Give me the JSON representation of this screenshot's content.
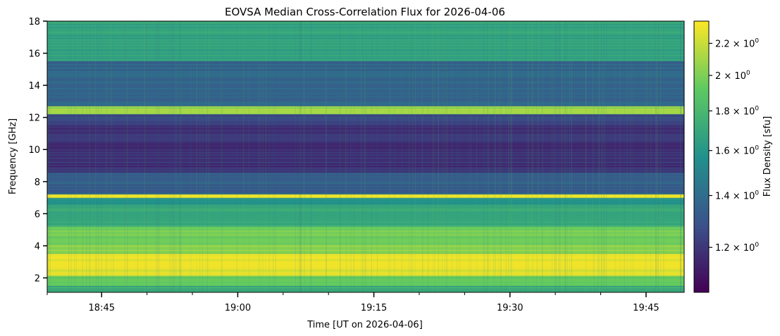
{
  "chart_data": {
    "type": "heatmap",
    "title": "EOVSA Median Cross-Correlation Flux for 2026-04-06",
    "xlabel": "Time [UT on 2026-04-06]",
    "ylabel": "Frequency [GHz]",
    "colorbar_label": "Flux Density [sfu]",
    "colormap": "viridis",
    "colormap_stops": [
      "#440154",
      "#3b528b",
      "#21918c",
      "#5ec962",
      "#fde725"
    ],
    "x_start": "18:39",
    "x_end": "19:49",
    "x_range_minutes": [
      0,
      70.2
    ],
    "y_range": [
      1.1,
      18.0
    ],
    "y_ticks": [
      2,
      4,
      6,
      8,
      10,
      12,
      14,
      16,
      18
    ],
    "x_ticks": [
      {
        "minute": 6,
        "label": "18:45"
      },
      {
        "minute": 21,
        "label": "19:00"
      },
      {
        "minute": 36,
        "label": "19:15"
      },
      {
        "minute": 51,
        "label": "19:30"
      },
      {
        "minute": 66,
        "label": "19:45"
      }
    ],
    "x_minor_tick_minutes": [
      0,
      11,
      16,
      26,
      31,
      41,
      46,
      56,
      61
    ],
    "colorbar_scale": "log",
    "colorbar_range": [
      1.05,
      2.35
    ],
    "colorbar_ticks": [
      {
        "value": 1.2,
        "mantissa": "1.2",
        "base": "10",
        "exp": "0"
      },
      {
        "value": 1.4,
        "mantissa": "1.4",
        "base": "10",
        "exp": "0"
      },
      {
        "value": 1.6,
        "mantissa": "1.6",
        "base": "10",
        "exp": "0"
      },
      {
        "value": 1.8,
        "mantissa": "1.8",
        "base": "10",
        "exp": "0"
      },
      {
        "value": 2.0,
        "mantissa": "2",
        "base": "10",
        "exp": "0"
      },
      {
        "value": 2.2,
        "mantissa": "2.2",
        "base": "10",
        "exp": "0"
      }
    ],
    "frequency_bands": [
      {
        "f0": 1.1,
        "f1": 1.5,
        "level": 0.62
      },
      {
        "f0": 1.5,
        "f1": 2.1,
        "level": 0.75
      },
      {
        "f0": 2.1,
        "f1": 2.6,
        "level": 0.95
      },
      {
        "f0": 2.6,
        "f1": 3.5,
        "level": 0.97
      },
      {
        "f0": 3.5,
        "f1": 4.0,
        "level": 0.82
      },
      {
        "f0": 4.0,
        "f1": 5.2,
        "level": 0.78
      },
      {
        "f0": 5.2,
        "f1": 6.6,
        "level": 0.6
      },
      {
        "f0": 6.6,
        "f1": 7.0,
        "level": 0.5
      },
      {
        "f0": 7.0,
        "f1": 7.2,
        "level": 0.97
      },
      {
        "f0": 7.2,
        "f1": 8.6,
        "level": 0.3
      },
      {
        "f0": 8.6,
        "f1": 11.5,
        "level": 0.15
      },
      {
        "f0": 11.5,
        "f1": 12.2,
        "level": 0.22
      },
      {
        "f0": 12.2,
        "f1": 12.7,
        "level": 0.85
      },
      {
        "f0": 12.7,
        "f1": 15.5,
        "level": 0.32
      },
      {
        "f0": 15.5,
        "f1": 18.0,
        "level": 0.58
      }
    ]
  }
}
